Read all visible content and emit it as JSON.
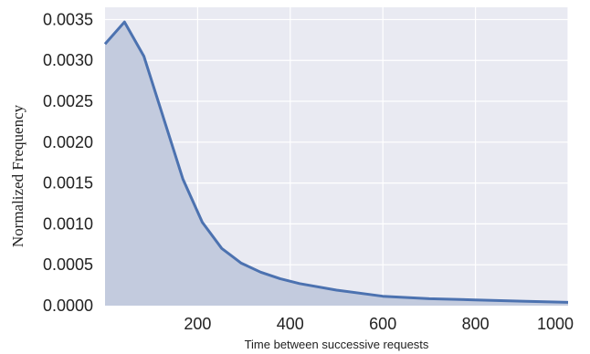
{
  "chart_data": {
    "type": "area",
    "title": "",
    "xlabel": "Time between successive requests",
    "ylabel": "Normalized Frequency",
    "xlim": [
      0,
      1000
    ],
    "ylim": [
      0,
      0.00365
    ],
    "xticks": [
      200,
      400,
      600,
      800,
      1000
    ],
    "xtick_labels": [
      "200",
      "400",
      "600",
      "800",
      "1000"
    ],
    "yticks": [
      0,
      0.0005,
      0.001,
      0.0015,
      0.002,
      0.0025,
      0.003,
      0.0035
    ],
    "ytick_labels": [
      "0.0000",
      "0.0005",
      "0.0010",
      "0.0015",
      "0.0020",
      "0.0025",
      "0.0030",
      "0.0035"
    ],
    "grid": true,
    "series": [
      {
        "x": [
          0,
          42,
          84,
          126,
          168,
          210,
          252,
          294,
          336,
          378,
          420,
          500,
          600,
          700,
          800,
          900,
          1000
        ],
        "values": [
          0.0032,
          0.00347,
          0.00305,
          0.0023,
          0.00155,
          0.00102,
          0.0007,
          0.00052,
          0.00041,
          0.00033,
          0.00027,
          0.00019,
          0.000115,
          8.5e-05,
          7e-05,
          5.5e-05,
          4e-05
        ]
      }
    ],
    "colors": {
      "background": "#e9eaf2",
      "grid": "#ffffff",
      "line": "#4c72b0",
      "fill": "#c3cbde"
    }
  }
}
